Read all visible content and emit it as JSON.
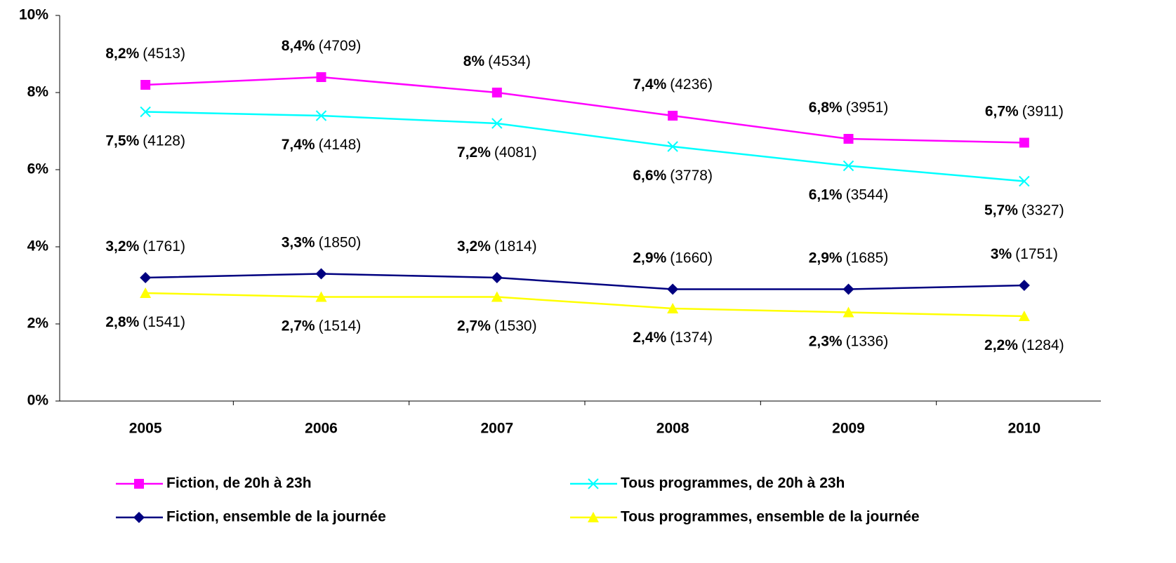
{
  "chart_data": {
    "type": "line",
    "categories": [
      "2005",
      "2006",
      "2007",
      "2008",
      "2009",
      "2010"
    ],
    "ylim": [
      0,
      10
    ],
    "yticks": [
      {
        "value": 0,
        "label": "0%"
      },
      {
        "value": 2,
        "label": "2%"
      },
      {
        "value": 4,
        "label": "4%"
      },
      {
        "value": 6,
        "label": "6%"
      },
      {
        "value": 8,
        "label": "8%"
      },
      {
        "value": 10,
        "label": "10%"
      }
    ],
    "legend": "bottom",
    "series": [
      {
        "name": "Fiction, de 20h à 23h",
        "color": "#ff00ff",
        "marker": "square",
        "label_position": "above",
        "values": [
          8.2,
          8.4,
          8,
          7.4,
          6.8,
          6.7
        ],
        "value_labels": [
          "8,2%",
          "8,4%",
          "8%",
          "7,4%",
          "6,8%",
          "6,7%"
        ],
        "count_labels": [
          "(4513)",
          "(4709)",
          "(4534)",
          "(4236)",
          "(3951)",
          "(3911)"
        ]
      },
      {
        "name": "Tous programmes, de 20h à 23h",
        "color": "#00ffff",
        "marker": "x",
        "label_position": "below",
        "values": [
          7.5,
          7.4,
          7.2,
          6.6,
          6.1,
          5.7
        ],
        "value_labels": [
          "7,5%",
          "7,4%",
          "7,2%",
          "6,6%",
          "6,1%",
          "5,7%"
        ],
        "count_labels": [
          "(4128)",
          "(4148)",
          "(4081)",
          "(3778)",
          "(3544)",
          "(3327)"
        ]
      },
      {
        "name": "Fiction, ensemble de la journée",
        "color": "#000080",
        "marker": "diamond",
        "label_position": "above",
        "values": [
          3.2,
          3.3,
          3.2,
          2.9,
          2.9,
          3
        ],
        "value_labels": [
          "3,2%",
          "3,3%",
          "3,2%",
          "2,9%",
          "2,9%",
          "3%"
        ],
        "count_labels": [
          "(1761)",
          "(1850)",
          "(1814)",
          "(1660)",
          "(1685)",
          "(1751)"
        ]
      },
      {
        "name": "Tous programmes, ensemble de la journée",
        "color": "#ffff00",
        "marker": "triangle",
        "label_position": "below",
        "values": [
          2.8,
          2.7,
          2.7,
          2.4,
          2.3,
          2.2
        ],
        "value_labels": [
          "2,8%",
          "2,7%",
          "2,7%",
          "2,4%",
          "2,3%",
          "2,2%"
        ],
        "count_labels": [
          "(1541)",
          "(1514)",
          "(1530)",
          "(1374)",
          "(1336)",
          "(1284)"
        ]
      }
    ]
  }
}
